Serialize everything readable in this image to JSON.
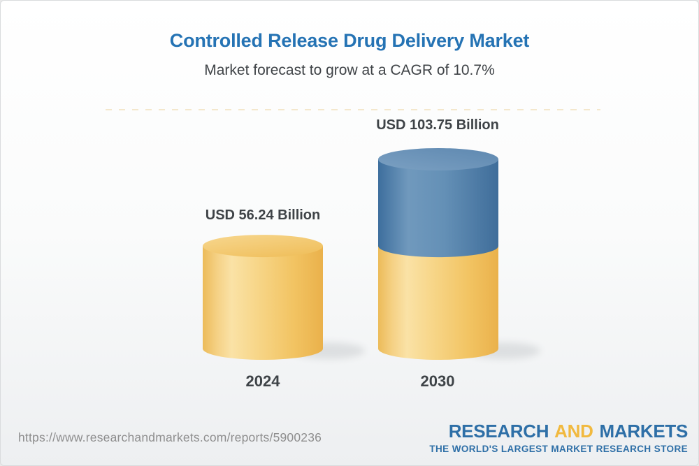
{
  "header": {
    "title": "Controlled Release Drug Delivery Market",
    "subtitle": "Market forecast to grow at a CAGR of 10.7%"
  },
  "chart_data": {
    "type": "bar",
    "subtype": "stacked-3d-cylinder",
    "categories": [
      "2024",
      "2030"
    ],
    "values": [
      56.24,
      103.75
    ],
    "value_labels": [
      "USD 56.24 Billion",
      "USD 103.75 Billion"
    ],
    "unit": "USD Billion",
    "cagr": "10.7%",
    "bars": [
      {
        "category": "2024",
        "segments": [
          {
            "name": "market-2024",
            "value": 56.24,
            "color": "#F5CB72"
          }
        ]
      },
      {
        "category": "2030",
        "segments": [
          {
            "name": "market-2024-base",
            "value": 56.24,
            "color": "#F5CB72"
          },
          {
            "name": "growth-to-2030",
            "value": 47.51,
            "color": "#5C89B2"
          }
        ]
      }
    ],
    "colors": {
      "gold": "#F5CB72",
      "blue": "#5C89B2",
      "label_text": "#3E4347",
      "title_blue": "#2573B4"
    },
    "legend": "none",
    "grid": "none",
    "ylim": [
      0,
      103.75
    ]
  },
  "footer": {
    "url": "https://www.researchandmarkets.com/reports/5900236",
    "logo": {
      "word1": "RESEARCH",
      "word2": "AND",
      "word3": "MARKETS",
      "tagline": "THE WORLD'S LARGEST MARKET RESEARCH STORE"
    }
  }
}
